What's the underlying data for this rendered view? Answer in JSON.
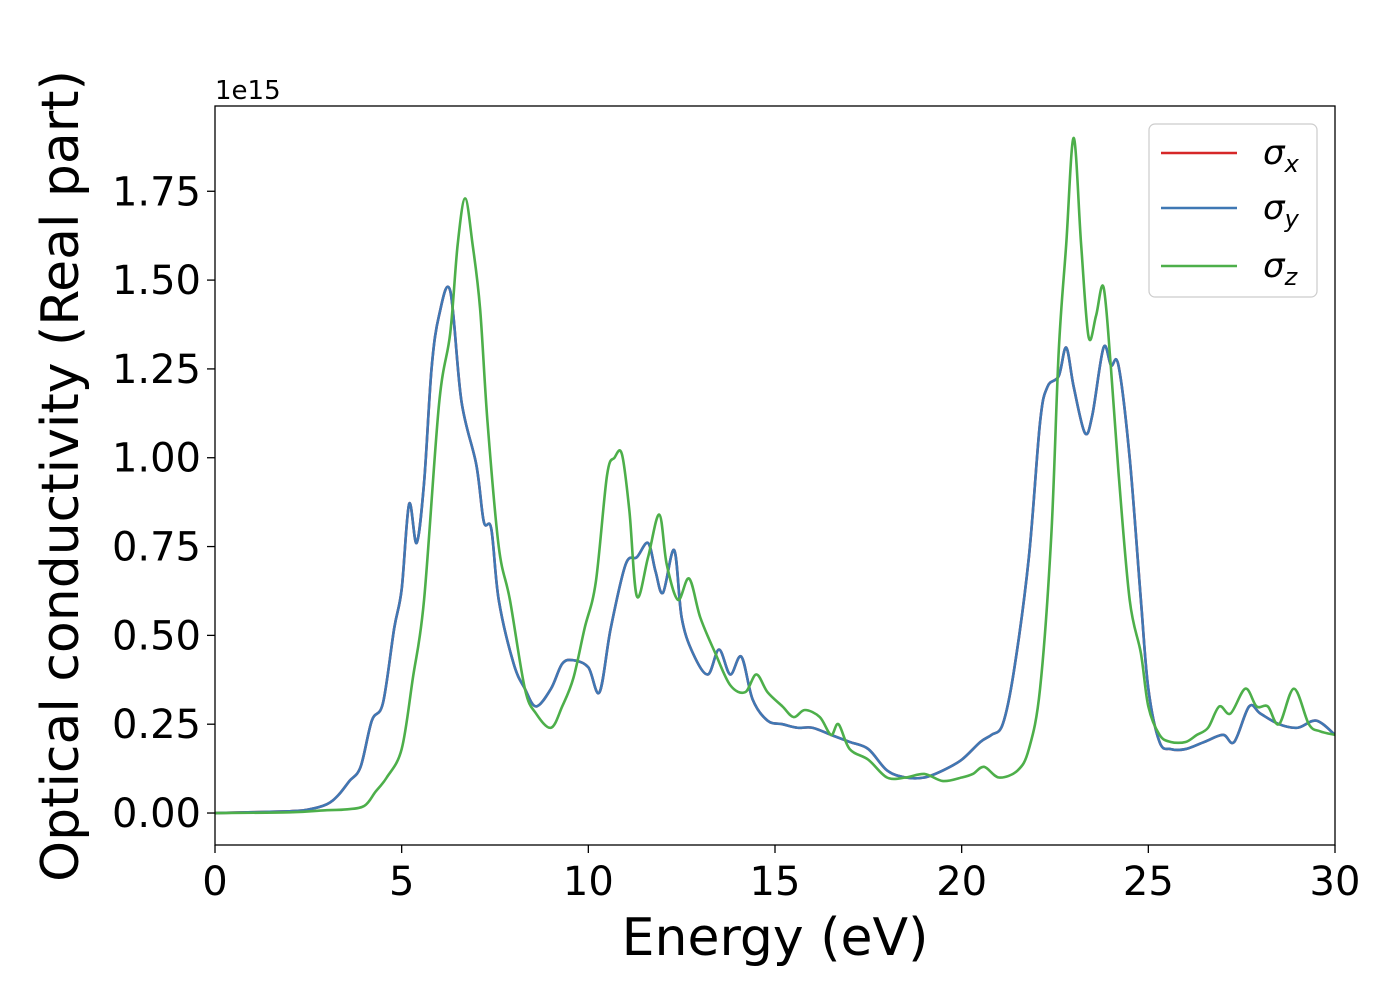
{
  "chart_data": {
    "type": "line",
    "xlabel": "Energy (eV)",
    "ylabel": "Optical conductivity (Real part)",
    "y_offset_label": "1e15",
    "xlim": [
      0,
      30
    ],
    "ylim": [
      -0.09,
      1.99
    ],
    "xticks": [
      0,
      5,
      10,
      15,
      20,
      25,
      30
    ],
    "xtick_labels": [
      "0",
      "5",
      "10",
      "15",
      "20",
      "25",
      "30"
    ],
    "yticks": [
      0.0,
      0.25,
      0.5,
      0.75,
      1.0,
      1.25,
      1.5,
      1.75
    ],
    "ytick_labels": [
      "0.00",
      "0.25",
      "0.50",
      "0.75",
      "1.00",
      "1.25",
      "1.50",
      "1.75"
    ],
    "grid": false,
    "legend_position": "top-right",
    "series": [
      {
        "name": "σx",
        "symbol": "σ",
        "subscript": "x",
        "color": "#d62728",
        "x": [
          0,
          2,
          2.5,
          3,
          3.3,
          3.6,
          3.9,
          4.2,
          4.5,
          4.8,
          5.0,
          5.2,
          5.4,
          5.6,
          5.8,
          6.0,
          6.3,
          6.6,
          7.0,
          7.2,
          7.4,
          7.6,
          8.0,
          8.3,
          8.6,
          9.0,
          9.3,
          9.6,
          10.0,
          10.3,
          10.6,
          11.0,
          11.3,
          11.6,
          11.8,
          12.0,
          12.3,
          12.5,
          12.8,
          13.2,
          13.5,
          13.8,
          14.1,
          14.4,
          14.8,
          15.2,
          15.6,
          16.0,
          16.5,
          17.0,
          17.5,
          18.0,
          18.5,
          19.0,
          19.5,
          20.0,
          20.5,
          20.8,
          21.1,
          21.4,
          21.8,
          22.1,
          22.3,
          22.6,
          22.8,
          23.0,
          23.3,
          23.5,
          23.8,
          24.0,
          24.2,
          24.5,
          24.8,
          25.0,
          25.3,
          25.6,
          26.0,
          26.5,
          27.0,
          27.3,
          27.7,
          28.0,
          28.5,
          29.0,
          29.5,
          30.0
        ],
        "values": [
          0,
          0.005,
          0.01,
          0.025,
          0.05,
          0.09,
          0.13,
          0.26,
          0.31,
          0.52,
          0.63,
          0.87,
          0.76,
          0.93,
          1.25,
          1.4,
          1.47,
          1.16,
          0.98,
          0.82,
          0.8,
          0.6,
          0.42,
          0.35,
          0.3,
          0.35,
          0.42,
          0.43,
          0.41,
          0.34,
          0.52,
          0.7,
          0.72,
          0.76,
          0.68,
          0.62,
          0.74,
          0.55,
          0.45,
          0.39,
          0.46,
          0.39,
          0.44,
          0.32,
          0.26,
          0.25,
          0.24,
          0.24,
          0.22,
          0.2,
          0.18,
          0.12,
          0.1,
          0.1,
          0.12,
          0.15,
          0.2,
          0.22,
          0.25,
          0.4,
          0.72,
          1.1,
          1.2,
          1.23,
          1.31,
          1.2,
          1.07,
          1.12,
          1.31,
          1.26,
          1.26,
          1.0,
          0.6,
          0.35,
          0.2,
          0.18,
          0.18,
          0.2,
          0.22,
          0.2,
          0.3,
          0.28,
          0.25,
          0.24,
          0.26,
          0.22
        ]
      },
      {
        "name": "σy",
        "symbol": "σ",
        "subscript": "y",
        "color": "#3f78b4",
        "x": [
          0,
          2,
          2.5,
          3,
          3.3,
          3.6,
          3.9,
          4.2,
          4.5,
          4.8,
          5.0,
          5.2,
          5.4,
          5.6,
          5.8,
          6.0,
          6.3,
          6.6,
          7.0,
          7.2,
          7.4,
          7.6,
          8.0,
          8.3,
          8.6,
          9.0,
          9.3,
          9.6,
          10.0,
          10.3,
          10.6,
          11.0,
          11.3,
          11.6,
          11.8,
          12.0,
          12.3,
          12.5,
          12.8,
          13.2,
          13.5,
          13.8,
          14.1,
          14.4,
          14.8,
          15.2,
          15.6,
          16.0,
          16.5,
          17.0,
          17.5,
          18.0,
          18.5,
          19.0,
          19.5,
          20.0,
          20.5,
          20.8,
          21.1,
          21.4,
          21.8,
          22.1,
          22.3,
          22.6,
          22.8,
          23.0,
          23.3,
          23.5,
          23.8,
          24.0,
          24.2,
          24.5,
          24.8,
          25.0,
          25.3,
          25.6,
          26.0,
          26.5,
          27.0,
          27.3,
          27.7,
          28.0,
          28.5,
          29.0,
          29.5,
          30.0
        ],
        "values": [
          0,
          0.005,
          0.01,
          0.025,
          0.05,
          0.09,
          0.13,
          0.26,
          0.31,
          0.52,
          0.63,
          0.87,
          0.76,
          0.93,
          1.25,
          1.4,
          1.47,
          1.16,
          0.98,
          0.82,
          0.8,
          0.6,
          0.42,
          0.35,
          0.3,
          0.35,
          0.42,
          0.43,
          0.41,
          0.34,
          0.52,
          0.7,
          0.72,
          0.76,
          0.68,
          0.62,
          0.74,
          0.55,
          0.45,
          0.39,
          0.46,
          0.39,
          0.44,
          0.32,
          0.26,
          0.25,
          0.24,
          0.24,
          0.22,
          0.2,
          0.18,
          0.12,
          0.1,
          0.1,
          0.12,
          0.15,
          0.2,
          0.22,
          0.25,
          0.4,
          0.72,
          1.1,
          1.2,
          1.23,
          1.31,
          1.2,
          1.07,
          1.12,
          1.31,
          1.26,
          1.26,
          1.0,
          0.6,
          0.35,
          0.2,
          0.18,
          0.18,
          0.2,
          0.22,
          0.2,
          0.3,
          0.28,
          0.25,
          0.24,
          0.26,
          0.22
        ]
      },
      {
        "name": "σz",
        "symbol": "σ",
        "subscript": "z",
        "color": "#4daf4a",
        "x": [
          0,
          2,
          3,
          3.5,
          4.0,
          4.3,
          4.6,
          5.0,
          5.3,
          5.6,
          6.0,
          6.3,
          6.5,
          6.7,
          6.9,
          7.1,
          7.3,
          7.6,
          7.9,
          8.3,
          8.6,
          9.0,
          9.3,
          9.6,
          9.9,
          10.2,
          10.5,
          10.7,
          10.9,
          11.1,
          11.3,
          11.6,
          11.9,
          12.1,
          12.4,
          12.7,
          13.0,
          13.4,
          13.8,
          14.2,
          14.5,
          14.8,
          15.2,
          15.5,
          15.8,
          16.2,
          16.5,
          16.7,
          17.0,
          17.5,
          18.0,
          18.5,
          19.0,
          19.5,
          20.0,
          20.3,
          20.6,
          21.0,
          21.5,
          21.8,
          22.1,
          22.4,
          22.6,
          22.8,
          23.0,
          23.2,
          23.4,
          23.6,
          23.8,
          24.0,
          24.2,
          24.5,
          24.8,
          25.0,
          25.3,
          25.6,
          26.0,
          26.3,
          26.6,
          26.9,
          27.2,
          27.6,
          27.9,
          28.2,
          28.5,
          28.9,
          29.3,
          29.6,
          30.0
        ],
        "values": [
          0,
          0.002,
          0.008,
          0.01,
          0.02,
          0.06,
          0.1,
          0.18,
          0.38,
          0.6,
          1.15,
          1.35,
          1.6,
          1.73,
          1.6,
          1.42,
          1.1,
          0.75,
          0.6,
          0.35,
          0.28,
          0.24,
          0.3,
          0.38,
          0.52,
          0.65,
          0.95,
          1.0,
          1.01,
          0.85,
          0.61,
          0.72,
          0.84,
          0.7,
          0.6,
          0.66,
          0.55,
          0.45,
          0.36,
          0.34,
          0.39,
          0.34,
          0.3,
          0.27,
          0.29,
          0.27,
          0.22,
          0.25,
          0.18,
          0.15,
          0.1,
          0.1,
          0.11,
          0.09,
          0.1,
          0.11,
          0.13,
          0.1,
          0.12,
          0.18,
          0.35,
          0.78,
          1.3,
          1.6,
          1.9,
          1.6,
          1.34,
          1.4,
          1.48,
          1.25,
          0.96,
          0.6,
          0.45,
          0.3,
          0.22,
          0.2,
          0.2,
          0.22,
          0.24,
          0.3,
          0.28,
          0.35,
          0.3,
          0.3,
          0.25,
          0.35,
          0.25,
          0.23,
          0.22
        ]
      }
    ]
  }
}
